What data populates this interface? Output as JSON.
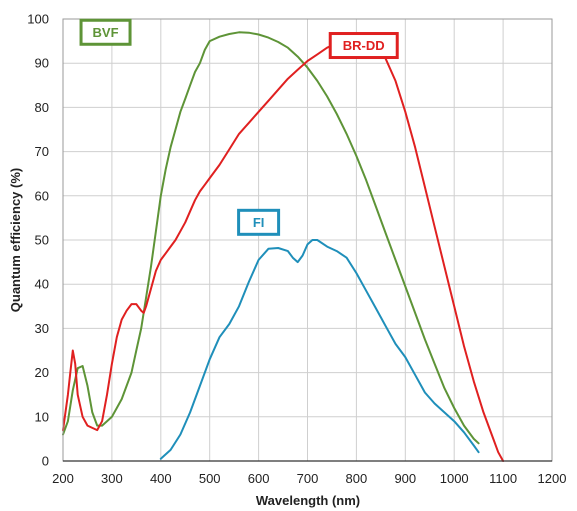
{
  "chart_data": {
    "type": "line",
    "xlabel": "Wavelength (nm)",
    "ylabel": "Quantum efficiency (%)",
    "xlim": [
      200,
      1200
    ],
    "ylim": [
      0,
      100
    ],
    "x_ticks": [
      200,
      300,
      400,
      500,
      600,
      700,
      800,
      900,
      1000,
      1100,
      1200
    ],
    "y_ticks": [
      0,
      10,
      20,
      30,
      40,
      50,
      60,
      70,
      80,
      90,
      100
    ],
    "grid": true,
    "series": [
      {
        "name": "BVF",
        "color": "#5e9437",
        "label_box": {
          "x": 287,
          "y": 97
        },
        "points": [
          [
            200,
            6
          ],
          [
            210,
            9
          ],
          [
            220,
            16
          ],
          [
            230,
            21
          ],
          [
            240,
            21.5
          ],
          [
            250,
            17
          ],
          [
            260,
            11
          ],
          [
            270,
            8
          ],
          [
            280,
            8
          ],
          [
            290,
            9
          ],
          [
            300,
            10
          ],
          [
            310,
            12
          ],
          [
            320,
            14
          ],
          [
            330,
            17
          ],
          [
            340,
            20
          ],
          [
            350,
            25
          ],
          [
            360,
            30
          ],
          [
            370,
            37
          ],
          [
            380,
            44
          ],
          [
            390,
            52
          ],
          [
            400,
            60
          ],
          [
            410,
            66
          ],
          [
            420,
            71
          ],
          [
            430,
            75
          ],
          [
            440,
            79
          ],
          [
            450,
            82
          ],
          [
            460,
            85
          ],
          [
            470,
            88
          ],
          [
            480,
            90
          ],
          [
            490,
            93
          ],
          [
            500,
            95
          ],
          [
            520,
            96
          ],
          [
            540,
            96.6
          ],
          [
            560,
            97
          ],
          [
            580,
            96.9
          ],
          [
            600,
            96.5
          ],
          [
            620,
            95.8
          ],
          [
            640,
            94.8
          ],
          [
            660,
            93.5
          ],
          [
            680,
            91.5
          ],
          [
            700,
            89
          ],
          [
            720,
            86
          ],
          [
            740,
            82.5
          ],
          [
            760,
            78.5
          ],
          [
            780,
            74
          ],
          [
            800,
            69
          ],
          [
            820,
            63.5
          ],
          [
            840,
            57.5
          ],
          [
            860,
            51.5
          ],
          [
            880,
            45.5
          ],
          [
            900,
            39.5
          ],
          [
            920,
            33.5
          ],
          [
            940,
            27.5
          ],
          [
            960,
            22
          ],
          [
            980,
            16.5
          ],
          [
            1000,
            12
          ],
          [
            1020,
            8
          ],
          [
            1040,
            5
          ],
          [
            1050,
            4
          ]
        ]
      },
      {
        "name": "BR-DD",
        "color": "#e02020",
        "label_box": {
          "x": 815,
          "y": 94
        },
        "points": [
          [
            200,
            7
          ],
          [
            210,
            15
          ],
          [
            215,
            20
          ],
          [
            220,
            25
          ],
          [
            225,
            22
          ],
          [
            230,
            15
          ],
          [
            240,
            10
          ],
          [
            250,
            8
          ],
          [
            260,
            7.5
          ],
          [
            270,
            7
          ],
          [
            280,
            9
          ],
          [
            290,
            15
          ],
          [
            300,
            22
          ],
          [
            310,
            28
          ],
          [
            320,
            32
          ],
          [
            330,
            34
          ],
          [
            340,
            35.5
          ],
          [
            350,
            35.5
          ],
          [
            360,
            34
          ],
          [
            365,
            33.5
          ],
          [
            370,
            35
          ],
          [
            380,
            39
          ],
          [
            390,
            43
          ],
          [
            400,
            45.5
          ],
          [
            410,
            47
          ],
          [
            420,
            48.5
          ],
          [
            430,
            50
          ],
          [
            440,
            52
          ],
          [
            450,
            54
          ],
          [
            460,
            56.5
          ],
          [
            470,
            59
          ],
          [
            480,
            61
          ],
          [
            490,
            62.5
          ],
          [
            500,
            64
          ],
          [
            520,
            67
          ],
          [
            540,
            70.5
          ],
          [
            560,
            74
          ],
          [
            580,
            76.5
          ],
          [
            600,
            79
          ],
          [
            620,
            81.5
          ],
          [
            640,
            84
          ],
          [
            660,
            86.5
          ],
          [
            680,
            88.5
          ],
          [
            700,
            90.5
          ],
          [
            720,
            92
          ],
          [
            740,
            93.5
          ],
          [
            760,
            94.5
          ],
          [
            780,
            95.2
          ],
          [
            800,
            95.5
          ],
          [
            820,
            95.2
          ],
          [
            840,
            94
          ],
          [
            860,
            91
          ],
          [
            880,
            86
          ],
          [
            900,
            79
          ],
          [
            920,
            71
          ],
          [
            940,
            62
          ],
          [
            960,
            53
          ],
          [
            980,
            44
          ],
          [
            1000,
            35
          ],
          [
            1020,
            26
          ],
          [
            1040,
            18
          ],
          [
            1060,
            11
          ],
          [
            1080,
            5
          ],
          [
            1090,
            2
          ],
          [
            1100,
            0
          ]
        ]
      },
      {
        "name": "FI",
        "color": "#1f8fba",
        "label_box": {
          "x": 600,
          "y": 54
        },
        "points": [
          [
            400,
            0.5
          ],
          [
            420,
            2.5
          ],
          [
            440,
            6
          ],
          [
            460,
            11
          ],
          [
            480,
            17
          ],
          [
            500,
            23
          ],
          [
            520,
            28
          ],
          [
            540,
            31
          ],
          [
            560,
            35
          ],
          [
            580,
            40.5
          ],
          [
            600,
            45.5
          ],
          [
            620,
            48
          ],
          [
            640,
            48.2
          ],
          [
            660,
            47.5
          ],
          [
            670,
            46
          ],
          [
            680,
            45
          ],
          [
            690,
            46.5
          ],
          [
            700,
            49
          ],
          [
            710,
            50
          ],
          [
            720,
            50
          ],
          [
            740,
            48.5
          ],
          [
            760,
            47.5
          ],
          [
            780,
            46
          ],
          [
            800,
            42.5
          ],
          [
            820,
            38.5
          ],
          [
            840,
            34.5
          ],
          [
            860,
            30.5
          ],
          [
            880,
            26.5
          ],
          [
            900,
            23.5
          ],
          [
            920,
            19.5
          ],
          [
            940,
            15.5
          ],
          [
            960,
            13
          ],
          [
            980,
            11
          ],
          [
            1000,
            9
          ],
          [
            1020,
            6.5
          ],
          [
            1040,
            3.5
          ],
          [
            1050,
            2
          ]
        ]
      }
    ]
  }
}
